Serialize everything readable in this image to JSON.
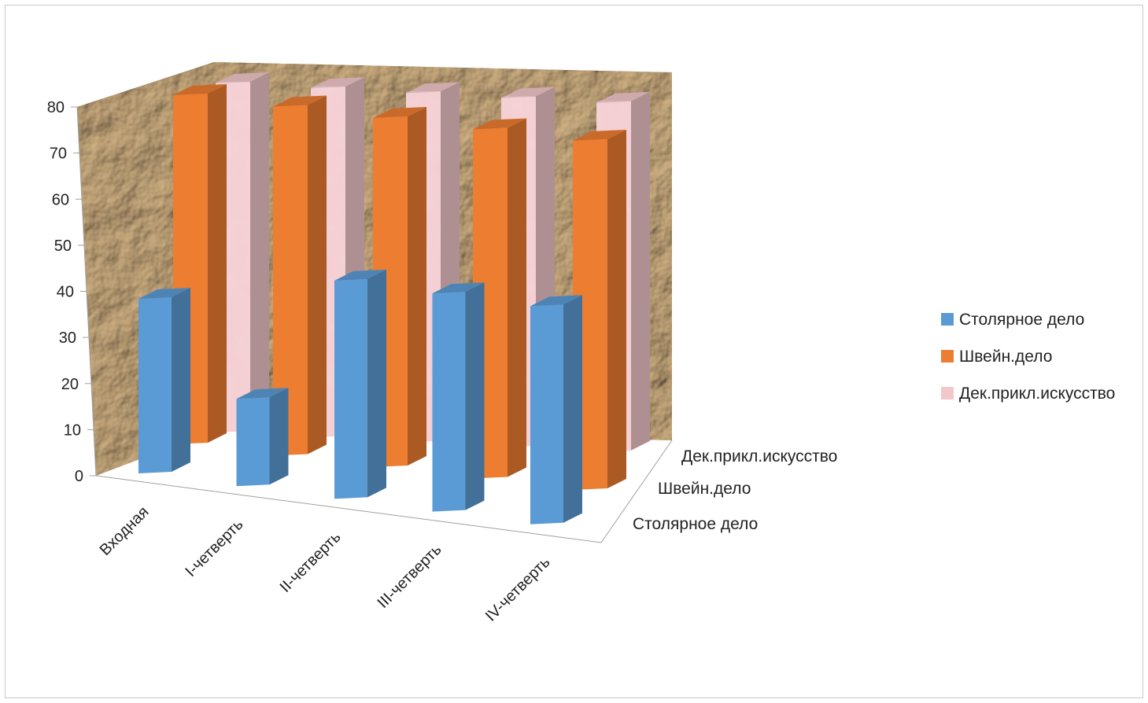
{
  "chart_data": {
    "type": "bar",
    "subtype": "3d-column",
    "title": "",
    "categories": [
      "Входная",
      "I-четверть",
      "II-четверть",
      "III-четверть",
      "IV-четверть"
    ],
    "series": [
      {
        "name": "Столярное дело",
        "values": [
          40,
          20,
          50,
          50,
          50
        ],
        "color": "#5b9bd5"
      },
      {
        "name": "Швейн.дело",
        "values": [
          80,
          80,
          80,
          80,
          80
        ],
        "color": "#ed7d31"
      },
      {
        "name": "Дек.прикл.искусство",
        "values": [
          80,
          80,
          80,
          80,
          80
        ],
        "color": "#f2c8cc"
      }
    ],
    "y_ticks": [
      "0",
      "10",
      "20",
      "30",
      "40",
      "50",
      "60",
      "70",
      "80"
    ],
    "ylim": [
      0,
      80
    ],
    "legend_position": "right",
    "walls": "crumpled-paper texture",
    "grid": false
  }
}
